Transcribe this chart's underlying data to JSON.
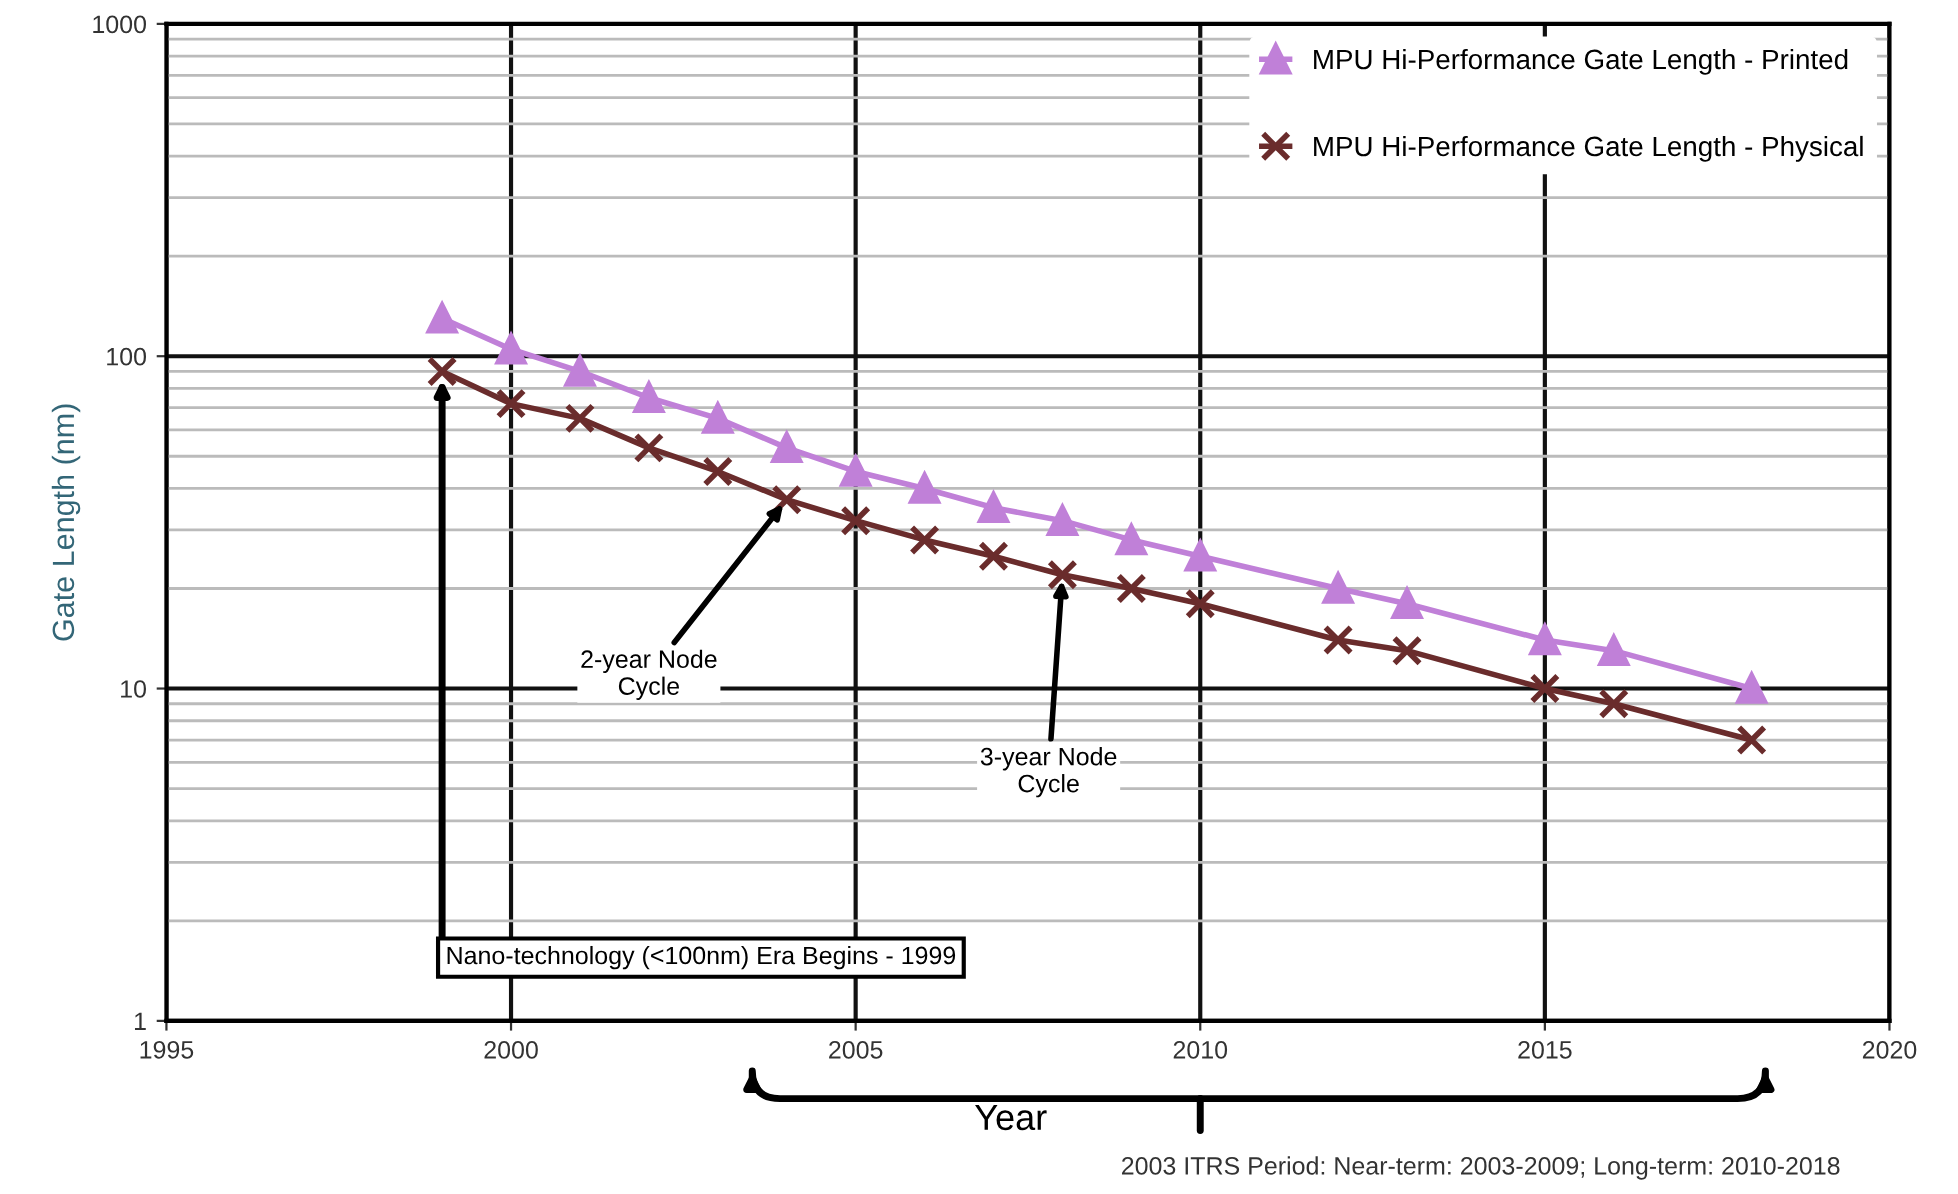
{
  "chart_data": {
    "type": "line",
    "xlabel": "Year",
    "ylabel": "Gate Length (nm)",
    "log": "y",
    "xlim": [
      1995,
      2020
    ],
    "xticks": [
      1995,
      2000,
      2005,
      2010,
      2015,
      2020
    ],
    "ylim": [
      1,
      1000
    ],
    "yticks": [
      1,
      10,
      100,
      1000
    ],
    "grid": true,
    "legend": "top right",
    "line_style": "solid",
    "series": [
      {
        "name": "MPU Hi-Performance Gate Length - Printed",
        "color": "#c080d8",
        "marker": "triangle",
        "x": [
          1999,
          2000,
          2001,
          2002,
          2003,
          2004,
          2005,
          2006,
          2007,
          2008,
          2009,
          2010,
          2012,
          2013,
          2015,
          2016,
          2018
        ],
        "values": [
          130,
          105,
          90,
          75,
          65,
          53,
          45,
          40,
          35,
          32,
          28,
          25,
          20,
          18,
          14,
          13,
          10
        ]
      },
      {
        "name": "MPU Hi-Performance Gate Length - Physical",
        "color": "#6a2c2c",
        "marker": "cross",
        "x": [
          1999,
          2000,
          2001,
          2002,
          2003,
          2004,
          2005,
          2006,
          2007,
          2008,
          2009,
          2010,
          2012,
          2013,
          2015,
          2016,
          2018
        ],
        "values": [
          90,
          72,
          65,
          53,
          45,
          37,
          32,
          28,
          25,
          22,
          20,
          18,
          14,
          13,
          10,
          9,
          7
        ]
      }
    ],
    "annotations": [
      {
        "text": "2-year Node Cycle",
        "x": 2004,
        "y": 37
      },
      {
        "text": "3-year Node Cycle",
        "x": 2008,
        "y": 22
      },
      {
        "text": "Nano-technology (<100nm) Era Begins - 1999",
        "x": 1999,
        "y": 90
      },
      "2003 ITRS Period: Near-term: 2003-2009; Long-term: 2010-2018"
    ]
  }
}
